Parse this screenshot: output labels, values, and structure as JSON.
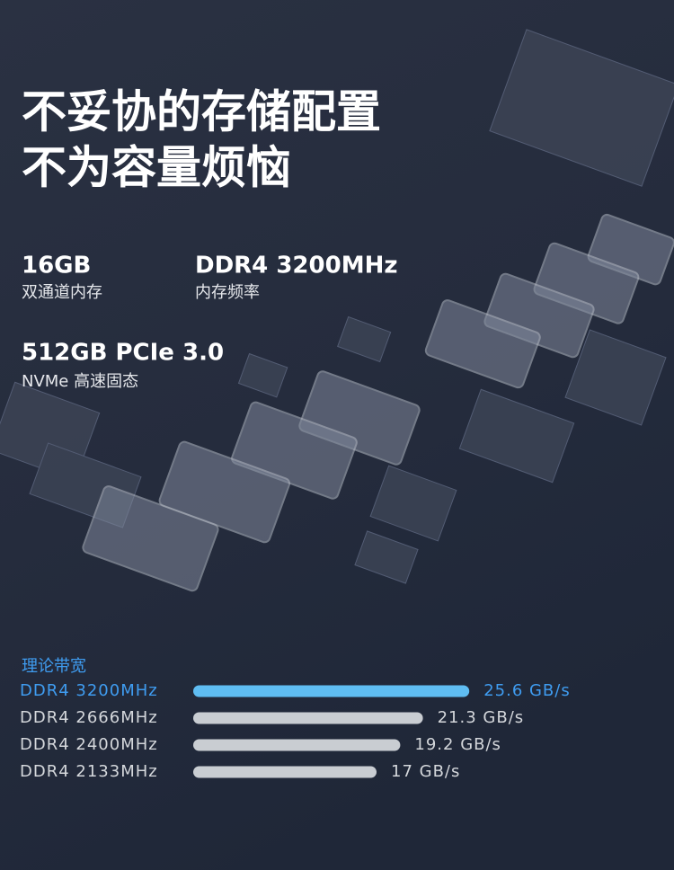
{
  "header": {
    "lines": [
      "不妥协的存储配置",
      "不为容量烦恼"
    ]
  },
  "specs": [
    {
      "value": "16GB",
      "label": "双通道内存"
    },
    {
      "value": "DDR4 3200MHz",
      "label": "内存频率"
    },
    {
      "value": "512GB PCIe 3.0",
      "label": "NVMe 高速固态"
    }
  ],
  "chart_data": {
    "type": "bar",
    "orientation": "horizontal",
    "title": "理论带宽",
    "categories": [
      "DDR4 3200MHz",
      "DDR4 2666MHz",
      "DDR4 2400MHz",
      "DDR4 2133MHz"
    ],
    "values": [
      25.6,
      21.3,
      19.2,
      17
    ],
    "value_labels": [
      "25.6 GB/s",
      "21.3 GB/s",
      "19.2 GB/s",
      "17 GB/s"
    ],
    "colors": [
      "#5fbdf2",
      "#c9cdd2",
      "#c9cdd2",
      "#c9cdd2"
    ],
    "label_colors": [
      "#3f9cf0",
      "#d4d7db",
      "#d4d7db",
      "#d4d7db"
    ]
  }
}
